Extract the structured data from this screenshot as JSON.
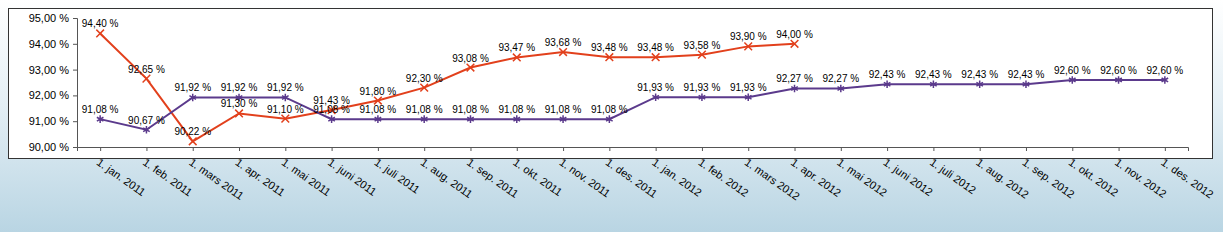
{
  "chart_data": {
    "type": "line",
    "categories": [
      "1. jan. 2011",
      "1. feb. 2011",
      "1. mars 2011",
      "1. apr. 2011",
      "1. mai 2011",
      "1. juni 2011",
      "1. juli 2011",
      "1. aug. 2011",
      "1. sep. 2011",
      "1. okt. 2011",
      "1. nov. 2011",
      "1. des. 2011",
      "1. jan. 2012",
      "1. feb. 2012",
      "1. mars 2012",
      "1. apr. 2012",
      "1. mai 2012",
      "1. juni 2012",
      "1. juli 2012",
      "1. aug. 2012",
      "1. sep. 2012",
      "1. okt. 2012",
      "1. nov. 2012",
      "1. des. 2012"
    ],
    "series": [
      {
        "color": "#e2401c",
        "marker": "x",
        "values": [
          94.4,
          92.65,
          90.22,
          91.3,
          91.1,
          91.43,
          91.8,
          92.3,
          93.08,
          93.47,
          93.68,
          93.48,
          93.48,
          93.58,
          93.9,
          94.0,
          null,
          null,
          null,
          null,
          null,
          null,
          null,
          null
        ],
        "value_labels": [
          "94,40 %",
          "92,65 %",
          "90,22 %",
          "91,30 %",
          "91,10 %",
          "91,43 %",
          "91,80 %",
          "92,30 %",
          "93,08 %",
          "93,47 %",
          "93,68 %",
          "93,48 %",
          "93,48 %",
          "93,58 %",
          "93,90 %",
          "94,00 %",
          null,
          null,
          null,
          null,
          null,
          null,
          null,
          null
        ]
      },
      {
        "color": "#5b3a8c",
        "marker": "star",
        "values": [
          91.08,
          90.67,
          91.92,
          91.92,
          91.92,
          91.08,
          91.08,
          91.08,
          91.08,
          91.08,
          91.08,
          91.08,
          91.93,
          91.93,
          91.93,
          92.27,
          92.27,
          92.43,
          92.43,
          92.43,
          92.43,
          92.6,
          92.6,
          92.6
        ],
        "value_labels": [
          "91,08 %",
          "90,67 %",
          "91,92 %",
          "91,92 %",
          "91,92 %",
          "91,08 %",
          "91,08 %",
          "91,08 %",
          "91,08 %",
          "91,08 %",
          "91,08 %",
          "91,08 %",
          "91,93 %",
          "91,93 %",
          "91,93 %",
          "92,27 %",
          "92,27 %",
          "92,43 %",
          "92,43 %",
          "92,43 %",
          "92,43 %",
          "92,60 %",
          "92,60 %",
          "92,60 %"
        ]
      }
    ],
    "ylim": [
      90,
      95
    ],
    "yticks": [
      {
        "value": 90,
        "label": "90,00 %"
      },
      {
        "value": 91,
        "label": "91,00 %"
      },
      {
        "value": 92,
        "label": "92,00 %"
      },
      {
        "value": 93,
        "label": "93,00 %"
      },
      {
        "value": 94,
        "label": "94,00 %"
      },
      {
        "value": 95,
        "label": "95,00 %"
      }
    ],
    "grid": false,
    "data_labels": true
  }
}
